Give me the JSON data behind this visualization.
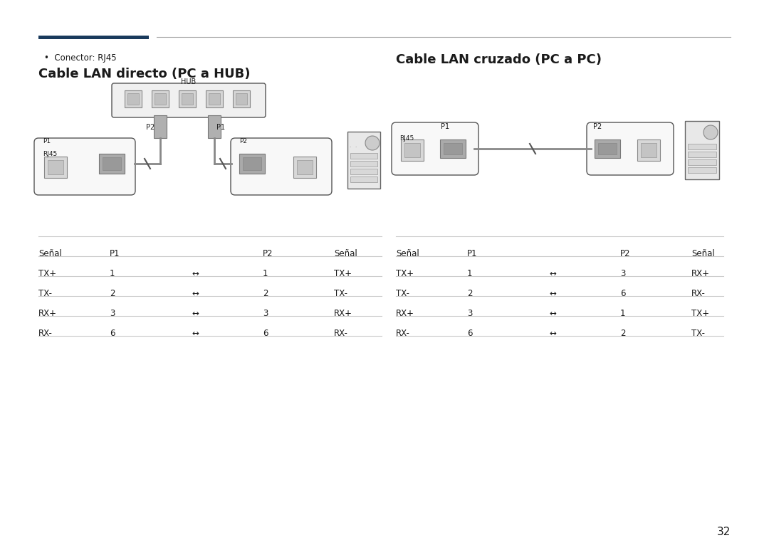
{
  "bg_color": "#ffffff",
  "text_color": "#1a1a1a",
  "header_line_left_color": "#1a3a5c",
  "bullet_text": "Conector: RJ45",
  "title_left": "Cable LAN directo (PC a HUB)",
  "title_right": "Cable LAN cruzado (PC a PC)",
  "table_left_header": [
    "Señal",
    "P1",
    "",
    "P2",
    "Señal"
  ],
  "table_left_rows": [
    [
      "TX+",
      "1",
      "↔",
      "1",
      "TX+"
    ],
    [
      "TX-",
      "2",
      "↔",
      "2",
      "TX-"
    ],
    [
      "RX+",
      "3",
      "↔",
      "3",
      "RX+"
    ],
    [
      "RX-",
      "6",
      "↔",
      "6",
      "RX-"
    ]
  ],
  "table_right_header": [
    "Señal",
    "P1",
    "",
    "P2",
    "Señal"
  ],
  "table_right_rows": [
    [
      "TX+",
      "1",
      "↔",
      "3",
      "RX+"
    ],
    [
      "TX-",
      "2",
      "↔",
      "6",
      "RX-"
    ],
    [
      "RX+",
      "3",
      "↔",
      "1",
      "TX+"
    ],
    [
      "RX-",
      "6",
      "↔",
      "2",
      "TX-"
    ]
  ],
  "page_number": "32",
  "line_color": "#cccccc",
  "diagram_stroke": "#555555",
  "diagram_fill_light": "#f0f0f0",
  "diagram_fill_port": "#d8d8d8",
  "diagram_fill_connector": "#aaaaaa"
}
